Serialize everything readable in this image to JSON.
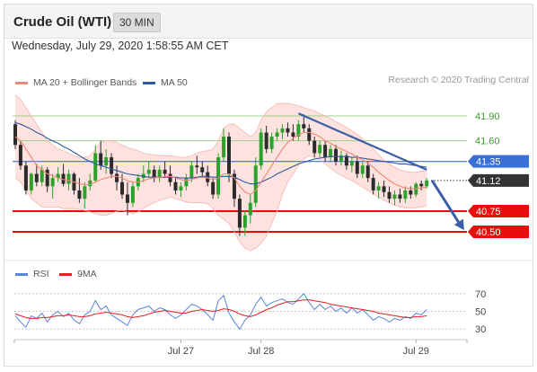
{
  "header": {
    "instrument": "Crude Oil (WTI)",
    "timeframe": "30 MIN"
  },
  "timestamp": "Wednesday, July 29, 2020 1:58:55 AM CET",
  "credit": "Research © 2020 Trading Central",
  "colors": {
    "ma20": "#f08878",
    "bollinger_fill": "#fde2df",
    "ma50": "#2c5aa0",
    "support": "#e80e0e",
    "resistance_line": "#9fd08a",
    "resistance_text": "#3a9a2a",
    "pivot": "#3a6fd8",
    "last": "#333333",
    "trendline": "#3a5ea8",
    "rsi": "#5b84d6",
    "rsi_ma": "#e52020"
  },
  "legend_main": [
    {
      "label": "MA 20 + Bollinger Bands",
      "color": "#f08878"
    },
    {
      "label": "MA 50",
      "color": "#2c5aa0"
    }
  ],
  "legend_rsi": [
    {
      "label": "RSI",
      "color": "#5b84d6"
    },
    {
      "label": "9MA",
      "color": "#e52020"
    }
  ],
  "chart_data": [
    {
      "type": "candlestick",
      "title": "Crude Oil (WTI)",
      "timeframe": "30 MIN",
      "x_ticks": [
        "Jul 27",
        "Jul 28",
        "Jul 29"
      ],
      "ylim": [
        40.25,
        42.15
      ],
      "levels": [
        {
          "label": "41.90",
          "kind": "resistance",
          "value": 41.9
        },
        {
          "label": "41.60",
          "kind": "resistance",
          "value": 41.6
        },
        {
          "label": "41.35",
          "kind": "pivot",
          "value": 41.35
        },
        {
          "label": "41.12",
          "kind": "last",
          "value": 41.12
        },
        {
          "label": "40.75",
          "kind": "support",
          "value": 40.75
        },
        {
          "label": "40.50",
          "kind": "support",
          "value": 40.5
        }
      ],
      "ohlc": [
        [
          41.8,
          41.85,
          41.5,
          41.55
        ],
        [
          41.55,
          41.6,
          41.25,
          41.3
        ],
        [
          41.3,
          41.35,
          40.95,
          41.0
        ],
        [
          41.0,
          41.22,
          40.95,
          41.2
        ],
        [
          41.2,
          41.32,
          41.05,
          41.1
        ],
        [
          41.1,
          41.3,
          41.05,
          41.25
        ],
        [
          41.25,
          41.28,
          40.98,
          41.05
        ],
        [
          41.05,
          41.2,
          40.9,
          41.15
        ],
        [
          41.15,
          41.28,
          41.1,
          41.2
        ],
        [
          41.2,
          41.32,
          41.05,
          41.08
        ],
        [
          41.08,
          41.25,
          41.0,
          41.2
        ],
        [
          41.2,
          41.22,
          40.95,
          41.0
        ],
        [
          41.0,
          41.15,
          40.85,
          40.9
        ],
        [
          40.9,
          41.1,
          40.78,
          41.05
        ],
        [
          41.05,
          41.2,
          41.0,
          41.12
        ],
        [
          41.12,
          41.55,
          41.1,
          41.45
        ],
        [
          41.45,
          41.6,
          41.25,
          41.3
        ],
        [
          41.3,
          41.5,
          41.2,
          41.4
        ],
        [
          41.4,
          41.45,
          41.15,
          41.2
        ],
        [
          41.2,
          41.3,
          41.0,
          41.1
        ],
        [
          41.1,
          41.2,
          40.9,
          40.95
        ],
        [
          40.95,
          41.1,
          40.7,
          40.85
        ],
        [
          40.85,
          41.1,
          40.8,
          41.05
        ],
        [
          41.05,
          41.2,
          41.0,
          41.15
        ],
        [
          41.15,
          41.3,
          41.1,
          41.2
        ],
        [
          41.2,
          41.35,
          41.15,
          41.25
        ],
        [
          41.25,
          41.3,
          41.1,
          41.15
        ],
        [
          41.15,
          41.3,
          41.1,
          41.25
        ],
        [
          41.25,
          41.35,
          41.15,
          41.2
        ],
        [
          41.2,
          41.3,
          41.05,
          41.1
        ],
        [
          41.1,
          41.15,
          40.95,
          41.0
        ],
        [
          41.0,
          41.1,
          40.92,
          41.05
        ],
        [
          41.05,
          41.2,
          41.0,
          41.15
        ],
        [
          41.15,
          41.35,
          41.1,
          41.3
        ],
        [
          41.3,
          41.42,
          41.2,
          41.28
        ],
        [
          41.28,
          41.35,
          41.15,
          41.22
        ],
        [
          41.22,
          41.3,
          41.05,
          41.1
        ],
        [
          41.1,
          41.15,
          40.9,
          40.95
        ],
        [
          40.95,
          41.45,
          40.9,
          41.4
        ],
        [
          41.4,
          41.75,
          41.35,
          41.65
        ],
        [
          41.65,
          41.7,
          41.1,
          41.2
        ],
        [
          41.2,
          41.25,
          40.8,
          40.9
        ],
        [
          40.9,
          40.95,
          40.45,
          40.55
        ],
        [
          40.55,
          40.75,
          40.45,
          40.7
        ],
        [
          40.7,
          40.95,
          40.6,
          40.85
        ],
        [
          40.85,
          41.4,
          40.8,
          41.3
        ],
        [
          41.3,
          41.75,
          41.25,
          41.7
        ],
        [
          41.7,
          41.78,
          41.45,
          41.5
        ],
        [
          41.5,
          41.7,
          41.45,
          41.65
        ],
        [
          41.65,
          41.75,
          41.6,
          41.7
        ],
        [
          41.7,
          41.8,
          41.62,
          41.75
        ],
        [
          41.75,
          41.82,
          41.65,
          41.7
        ],
        [
          41.7,
          41.8,
          41.6,
          41.65
        ],
        [
          41.65,
          41.85,
          41.6,
          41.8
        ],
        [
          41.8,
          41.92,
          41.7,
          41.75
        ],
        [
          41.75,
          41.8,
          41.55,
          41.6
        ],
        [
          41.6,
          41.65,
          41.4,
          41.45
        ],
        [
          41.45,
          41.6,
          41.4,
          41.55
        ],
        [
          41.55,
          41.6,
          41.35,
          41.4
        ],
        [
          41.4,
          41.55,
          41.35,
          41.5
        ],
        [
          41.5,
          41.55,
          41.3,
          41.35
        ],
        [
          41.35,
          41.48,
          41.3,
          41.42
        ],
        [
          41.42,
          41.45,
          41.25,
          41.3
        ],
        [
          41.3,
          41.4,
          41.22,
          41.35
        ],
        [
          41.35,
          41.42,
          41.15,
          41.2
        ],
        [
          41.2,
          41.35,
          41.15,
          41.3
        ],
        [
          41.3,
          41.35,
          41.1,
          41.15
        ],
        [
          41.15,
          41.2,
          40.95,
          41.0
        ],
        [
          41.0,
          41.1,
          40.9,
          41.05
        ],
        [
          41.05,
          41.12,
          40.92,
          40.98
        ],
        [
          40.98,
          41.05,
          40.85,
          40.9
        ],
        [
          40.9,
          41.0,
          40.82,
          40.95
        ],
        [
          40.95,
          41.02,
          40.85,
          40.9
        ],
        [
          40.9,
          41.05,
          40.85,
          41.0
        ],
        [
          41.0,
          41.05,
          40.9,
          40.95
        ],
        [
          40.95,
          41.1,
          40.92,
          41.08
        ],
        [
          41.08,
          41.12,
          41.0,
          41.05
        ],
        [
          41.05,
          41.15,
          41.02,
          41.12
        ]
      ],
      "series": [
        {
          "name": "MA 20",
          "values": [
            41.65,
            41.6,
            41.5,
            41.4,
            41.3,
            41.25,
            41.2,
            41.18,
            41.15,
            41.13,
            41.12,
            41.1,
            41.08,
            41.07,
            41.07,
            41.1,
            41.13,
            41.15,
            41.17,
            41.17,
            41.15,
            41.12,
            41.1,
            41.1,
            41.12,
            41.14,
            41.15,
            41.16,
            41.17,
            41.17,
            41.15,
            41.13,
            41.12,
            41.13,
            41.15,
            41.16,
            41.15,
            41.13,
            41.15,
            41.2,
            41.2,
            41.15,
            41.05,
            40.98,
            40.95,
            41.0,
            41.1,
            41.2,
            41.3,
            41.4,
            41.5,
            41.58,
            41.63,
            41.67,
            41.7,
            41.7,
            41.68,
            41.65,
            41.6,
            41.57,
            41.53,
            41.5,
            41.47,
            41.44,
            41.4,
            41.37,
            41.33,
            41.28,
            41.22,
            41.17,
            41.12,
            41.08,
            41.05,
            41.03,
            41.02,
            41.02,
            41.03,
            41.04
          ]
        },
        {
          "name": "MA 50",
          "values": [
            41.82,
            41.8,
            41.77,
            41.74,
            41.7,
            41.67,
            41.63,
            41.6,
            41.57,
            41.53,
            41.5,
            41.46,
            41.42,
            41.38,
            41.35,
            41.32,
            41.3,
            41.28,
            41.26,
            41.24,
            41.22,
            41.2,
            41.19,
            41.18,
            41.17,
            41.16,
            41.16,
            41.16,
            41.16,
            41.16,
            41.16,
            41.15,
            41.15,
            41.15,
            41.16,
            41.17,
            41.17,
            41.16,
            41.16,
            41.17,
            41.17,
            41.16,
            41.13,
            41.1,
            41.08,
            41.08,
            41.1,
            41.13,
            41.16,
            41.2,
            41.23,
            41.26,
            41.29,
            41.32,
            41.34,
            41.36,
            41.38,
            41.39,
            41.4,
            41.41,
            41.41,
            41.41,
            41.41,
            41.4,
            41.4,
            41.39,
            41.38,
            41.37,
            41.36,
            41.35,
            41.34,
            41.33,
            41.32,
            41.32,
            41.31,
            41.3,
            41.29,
            41.28
          ]
        },
        {
          "name": "Bollinger upper",
          "values": [
            42.15,
            42.1,
            42.0,
            41.9,
            41.8,
            41.7,
            41.6,
            41.55,
            41.5,
            41.48,
            41.45,
            41.42,
            41.4,
            41.4,
            41.42,
            41.5,
            41.58,
            41.6,
            41.6,
            41.58,
            41.55,
            41.52,
            41.5,
            41.48,
            41.45,
            41.44,
            41.43,
            41.42,
            41.42,
            41.42,
            41.41,
            41.4,
            41.4,
            41.42,
            41.45,
            41.47,
            41.48,
            41.5,
            41.6,
            41.75,
            41.8,
            41.8,
            41.75,
            41.7,
            41.65,
            41.7,
            41.85,
            41.95,
            42.0,
            42.05,
            42.05,
            42.05,
            42.04,
            42.02,
            42.0,
            41.98,
            41.96,
            41.93,
            41.9,
            41.87,
            41.83,
            41.8,
            41.76,
            41.72,
            41.68,
            41.62,
            41.56,
            41.5,
            41.43,
            41.37,
            41.32,
            41.28,
            41.25,
            41.23,
            41.22,
            41.22,
            41.23,
            41.24
          ]
        },
        {
          "name": "Bollinger lower",
          "values": [
            41.15,
            41.1,
            41.0,
            40.9,
            40.85,
            40.8,
            40.8,
            40.8,
            40.8,
            40.78,
            40.78,
            40.78,
            40.77,
            40.76,
            40.74,
            40.72,
            40.7,
            40.7,
            40.72,
            40.75,
            40.76,
            40.74,
            40.72,
            40.74,
            40.78,
            40.82,
            40.85,
            40.88,
            40.9,
            40.92,
            40.9,
            40.88,
            40.86,
            40.85,
            40.85,
            40.85,
            40.84,
            40.78,
            40.7,
            40.65,
            40.6,
            40.5,
            40.38,
            40.3,
            40.27,
            40.3,
            40.36,
            40.45,
            40.6,
            40.75,
            40.95,
            41.1,
            41.2,
            41.3,
            41.38,
            41.42,
            41.4,
            41.37,
            41.32,
            41.27,
            41.22,
            41.18,
            41.15,
            41.12,
            41.08,
            41.04,
            41.0,
            40.96,
            40.92,
            40.88,
            40.85,
            40.82,
            40.8,
            40.79,
            40.79,
            40.79,
            40.8,
            40.82
          ]
        }
      ],
      "trendline": {
        "from_bar": 53,
        "from_value": 41.93,
        "to_bar": 77,
        "to_value": 41.25
      },
      "projection": {
        "from_bar": 78,
        "from_value": 41.12,
        "to_bar": 84,
        "to_value": 40.52
      }
    },
    {
      "type": "line",
      "title": "RSI",
      "x_ticks": [
        "Jul 27",
        "Jul 28",
        "Jul 29"
      ],
      "y_ticks": [
        "70",
        "50",
        "30"
      ],
      "ylim": [
        20,
        80
      ],
      "series": [
        {
          "name": "RSI",
          "values": [
            45,
            38,
            32,
            45,
            42,
            48,
            38,
            46,
            50,
            44,
            48,
            40,
            36,
            46,
            50,
            62,
            52,
            56,
            46,
            42,
            38,
            34,
            46,
            52,
            54,
            56,
            50,
            54,
            52,
            46,
            42,
            46,
            52,
            58,
            56,
            52,
            46,
            40,
            62,
            68,
            48,
            38,
            30,
            40,
            46,
            58,
            66,
            56,
            60,
            62,
            64,
            60,
            58,
            64,
            70,
            60,
            52,
            58,
            52,
            56,
            50,
            54,
            48,
            54,
            48,
            52,
            46,
            40,
            44,
            42,
            38,
            42,
            40,
            44,
            42,
            48,
            46,
            52
          ]
        },
        {
          "name": "9MA",
          "values": [
            47,
            45,
            43,
            42,
            42,
            43,
            43,
            44,
            45,
            45,
            46,
            45,
            44,
            44,
            45,
            47,
            48,
            49,
            48,
            47,
            46,
            44,
            43,
            44,
            45,
            47,
            49,
            50,
            51,
            50,
            49,
            48,
            48,
            50,
            51,
            52,
            51,
            50,
            51,
            53,
            52,
            50,
            47,
            45,
            44,
            46,
            49,
            52,
            54,
            57,
            59,
            61,
            61,
            62,
            63,
            63,
            62,
            61,
            60,
            58,
            57,
            56,
            55,
            54,
            53,
            52,
            51,
            50,
            48,
            47,
            46,
            45,
            44,
            43,
            43,
            44,
            44,
            45
          ]
        }
      ]
    }
  ]
}
